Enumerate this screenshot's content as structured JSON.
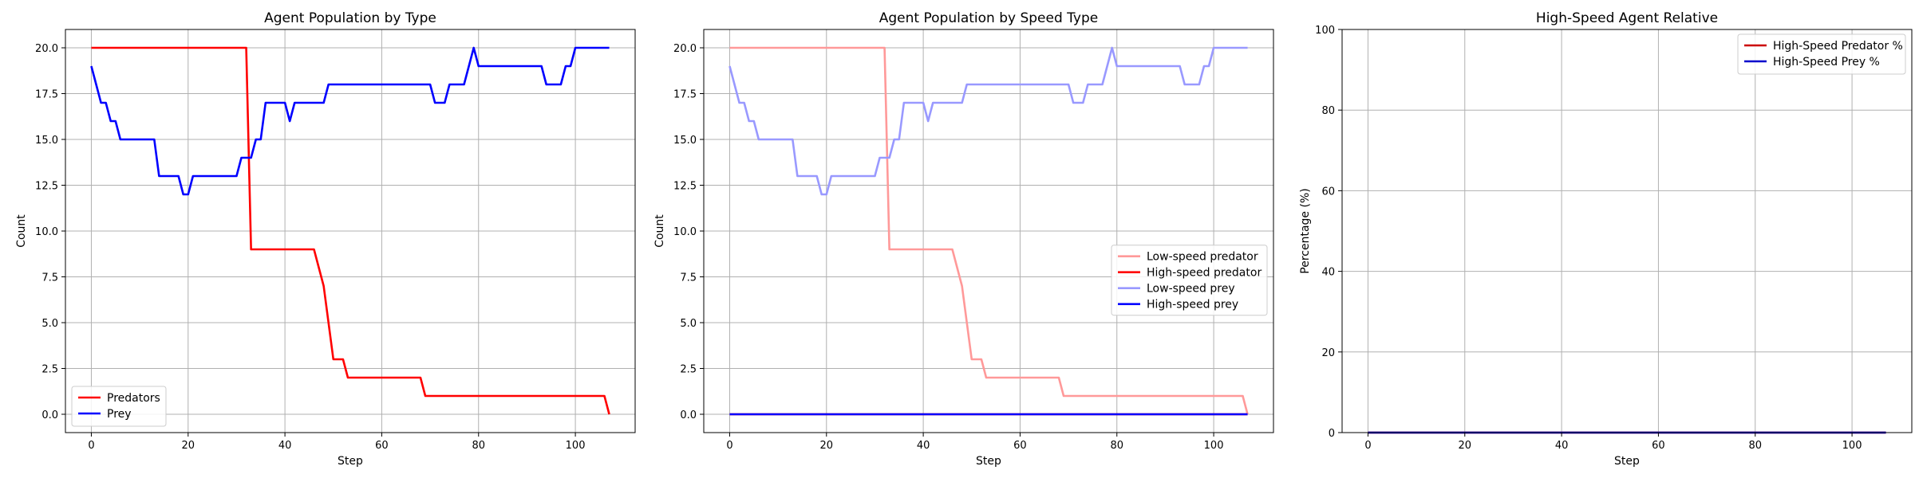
{
  "chart_data": [
    {
      "type": "line",
      "title": "Agent Population by Type",
      "xlabel": "Step",
      "ylabel": "Count",
      "xlim": [
        -5.35,
        112.35
      ],
      "ylim": [
        -1.0,
        21.0
      ],
      "xticks": [
        0,
        20,
        40,
        60,
        80,
        100
      ],
      "xtick_labels": [
        "0",
        "20",
        "40",
        "60",
        "80",
        "100"
      ],
      "yticks": [
        0,
        2.5,
        5,
        7.5,
        10,
        12.5,
        15,
        17.5,
        20
      ],
      "ytick_labels": [
        "0.0",
        "2.5",
        "5.0",
        "7.5",
        "10.0",
        "12.5",
        "15.0",
        "17.5",
        "20.0"
      ],
      "grid": true,
      "legend_position": "lower-left",
      "series": [
        {
          "name": "Predators",
          "color": "#ff0000",
          "points": [
            [
              0,
              20
            ],
            [
              32,
              20
            ],
            [
              33,
              9
            ],
            [
              46,
              9
            ],
            [
              48,
              7
            ],
            [
              50,
              3
            ],
            [
              52,
              3
            ],
            [
              53,
              2
            ],
            [
              68,
              2
            ],
            [
              69,
              1
            ],
            [
              106,
              1
            ],
            [
              107,
              0
            ]
          ]
        },
        {
          "name": "Prey",
          "color": "#0000ff",
          "points": [
            [
              0,
              19
            ],
            [
              1,
              18
            ],
            [
              2,
              17
            ],
            [
              3,
              17
            ],
            [
              4,
              16
            ],
            [
              5,
              16
            ],
            [
              6,
              15
            ],
            [
              13,
              15
            ],
            [
              14,
              13
            ],
            [
              18,
              13
            ],
            [
              19,
              12
            ],
            [
              20,
              12
            ],
            [
              21,
              13
            ],
            [
              30,
              13
            ],
            [
              31,
              14
            ],
            [
              33,
              14
            ],
            [
              34,
              15
            ],
            [
              35,
              15
            ],
            [
              36,
              17
            ],
            [
              40,
              17
            ],
            [
              41,
              16
            ],
            [
              42,
              17
            ],
            [
              48,
              17
            ],
            [
              49,
              18
            ],
            [
              70,
              18
            ],
            [
              71,
              17
            ],
            [
              73,
              17
            ],
            [
              74,
              18
            ],
            [
              77,
              18
            ],
            [
              79,
              20
            ],
            [
              80,
              19
            ],
            [
              93,
              19
            ],
            [
              94,
              18
            ],
            [
              97,
              18
            ],
            [
              98,
              19
            ],
            [
              99,
              19
            ],
            [
              100,
              20
            ],
            [
              107,
              20
            ]
          ]
        }
      ]
    },
    {
      "type": "line",
      "title": "Agent Population by Speed Type",
      "xlabel": "Step",
      "ylabel": "Count",
      "xlim": [
        -5.35,
        112.35
      ],
      "ylim": [
        -1.0,
        21.0
      ],
      "xticks": [
        0,
        20,
        40,
        60,
        80,
        100
      ],
      "xtick_labels": [
        "0",
        "20",
        "40",
        "60",
        "80",
        "100"
      ],
      "yticks": [
        0,
        2.5,
        5,
        7.5,
        10,
        12.5,
        15,
        17.5,
        20
      ],
      "ytick_labels": [
        "0.0",
        "2.5",
        "5.0",
        "7.5",
        "10.0",
        "12.5",
        "15.0",
        "17.5",
        "20.0"
      ],
      "grid": true,
      "legend_position": "center-right",
      "series": [
        {
          "name": "Low-speed predator",
          "color": "#ff9999",
          "points": [
            [
              0,
              20
            ],
            [
              32,
              20
            ],
            [
              33,
              9
            ],
            [
              46,
              9
            ],
            [
              48,
              7
            ],
            [
              50,
              3
            ],
            [
              52,
              3
            ],
            [
              53,
              2
            ],
            [
              68,
              2
            ],
            [
              69,
              1
            ],
            [
              106,
              1
            ],
            [
              107,
              0
            ]
          ]
        },
        {
          "name": "High-speed predator",
          "color": "#ff0000",
          "points": [
            [
              0,
              0
            ],
            [
              107,
              0
            ]
          ]
        },
        {
          "name": "Low-speed prey",
          "color": "#9999ff",
          "points": [
            [
              0,
              19
            ],
            [
              1,
              18
            ],
            [
              2,
              17
            ],
            [
              3,
              17
            ],
            [
              4,
              16
            ],
            [
              5,
              16
            ],
            [
              6,
              15
            ],
            [
              13,
              15
            ],
            [
              14,
              13
            ],
            [
              18,
              13
            ],
            [
              19,
              12
            ],
            [
              20,
              12
            ],
            [
              21,
              13
            ],
            [
              30,
              13
            ],
            [
              31,
              14
            ],
            [
              33,
              14
            ],
            [
              34,
              15
            ],
            [
              35,
              15
            ],
            [
              36,
              17
            ],
            [
              40,
              17
            ],
            [
              41,
              16
            ],
            [
              42,
              17
            ],
            [
              48,
              17
            ],
            [
              49,
              18
            ],
            [
              70,
              18
            ],
            [
              71,
              17
            ],
            [
              73,
              17
            ],
            [
              74,
              18
            ],
            [
              77,
              18
            ],
            [
              79,
              20
            ],
            [
              80,
              19
            ],
            [
              93,
              19
            ],
            [
              94,
              18
            ],
            [
              97,
              18
            ],
            [
              98,
              19
            ],
            [
              99,
              19
            ],
            [
              100,
              20
            ],
            [
              107,
              20
            ]
          ]
        },
        {
          "name": "High-speed prey",
          "color": "#0000ff",
          "points": [
            [
              0,
              0
            ],
            [
              107,
              0
            ]
          ]
        }
      ]
    },
    {
      "type": "line",
      "title": "High-Speed Agent Relative",
      "xlabel": "Step",
      "ylabel": "Percentage (%)",
      "xlim": [
        -5.35,
        112.35
      ],
      "ylim": [
        0,
        100
      ],
      "xticks": [
        0,
        20,
        40,
        60,
        80,
        100
      ],
      "xtick_labels": [
        "0",
        "20",
        "40",
        "60",
        "80",
        "100"
      ],
      "yticks": [
        0,
        20,
        40,
        60,
        80,
        100
      ],
      "ytick_labels": [
        "0",
        "20",
        "40",
        "60",
        "80",
        "100"
      ],
      "grid": true,
      "legend_position": "top-right",
      "series": [
        {
          "name": "High-Speed Predator %",
          "color": "#cc0000",
          "points": [
            [
              0,
              0
            ],
            [
              107,
              0
            ]
          ]
        },
        {
          "name": "High-Speed Prey %",
          "color": "#0000cc",
          "points": [
            [
              0,
              0
            ],
            [
              107,
              0
            ]
          ]
        }
      ]
    }
  ]
}
